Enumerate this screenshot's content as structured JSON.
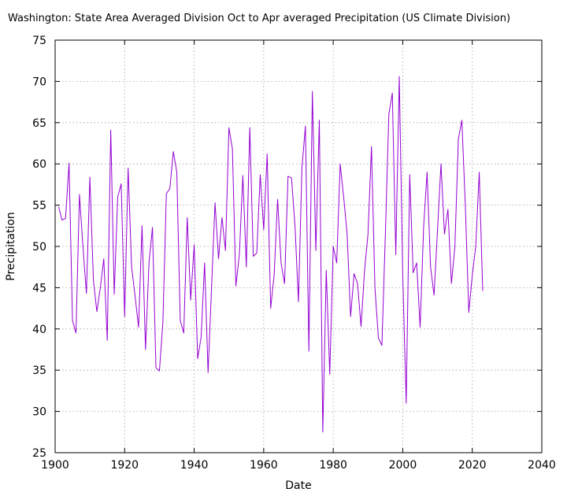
{
  "chart_data": {
    "type": "line",
    "title": "Washington: State Area Averaged Division  Oct to Apr averaged Precipitation  (US Climate Division)",
    "xlabel": "Date",
    "ylabel": "Precipitation",
    "xlim": [
      1900,
      2040
    ],
    "ylim": [
      25,
      75
    ],
    "xticks": [
      1900,
      1920,
      1940,
      1960,
      1980,
      2000,
      2020,
      2040
    ],
    "yticks": [
      25,
      30,
      35,
      40,
      45,
      50,
      55,
      60,
      65,
      70,
      75
    ],
    "grid": true,
    "series": [
      {
        "name": "Oct to Apr averaged Precipitation",
        "color": "#9400d3",
        "x": [
          1901,
          1902,
          1903,
          1904,
          1905,
          1906,
          1907,
          1908,
          1909,
          1910,
          1911,
          1912,
          1913,
          1914,
          1915,
          1916,
          1917,
          1918,
          1919,
          1920,
          1921,
          1922,
          1923,
          1924,
          1925,
          1926,
          1927,
          1928,
          1929,
          1930,
          1931,
          1932,
          1933,
          1934,
          1935,
          1936,
          1937,
          1938,
          1939,
          1940,
          1941,
          1942,
          1943,
          1944,
          1945,
          1946,
          1947,
          1948,
          1949,
          1950,
          1951,
          1952,
          1953,
          1954,
          1955,
          1956,
          1957,
          1958,
          1959,
          1960,
          1961,
          1962,
          1963,
          1964,
          1965,
          1966,
          1967,
          1968,
          1969,
          1970,
          1971,
          1972,
          1973,
          1974,
          1975,
          1976,
          1977,
          1978,
          1979,
          1980,
          1981,
          1982,
          1983,
          1984,
          1985,
          1986,
          1987,
          1988,
          1989,
          1990,
          1991,
          1992,
          1993,
          1994,
          1995,
          1996,
          1997,
          1998,
          1999,
          2000,
          2001,
          2002,
          2003,
          2004,
          2005,
          2006,
          2007,
          2008,
          2009,
          2010,
          2011,
          2012,
          2013,
          2014,
          2015,
          2016,
          2017,
          2018,
          2019,
          2020,
          2021,
          2022,
          2023
        ],
        "values": [
          54.8,
          53.2,
          53.4,
          60.1,
          41.0,
          39.5,
          56.3,
          50.0,
          44.3,
          58.4,
          46.0,
          42.1,
          45.0,
          48.5,
          38.6,
          64.1,
          44.2,
          56.0,
          57.6,
          41.5,
          59.5,
          47.5,
          44.0,
          40.2,
          52.5,
          37.5,
          48.0,
          52.3,
          35.3,
          34.9,
          40.8,
          56.4,
          57.0,
          61.5,
          59.0,
          41.0,
          39.5,
          53.5,
          43.5,
          50.2,
          36.4,
          39.0,
          48.0,
          34.7,
          45.0,
          55.3,
          48.5,
          53.5,
          49.5,
          64.4,
          61.8,
          45.2,
          49.0,
          58.6,
          47.5,
          64.4,
          48.8,
          49.2,
          58.7,
          52.0,
          61.2,
          42.5,
          46.5,
          55.7,
          48.0,
          45.5,
          58.5,
          58.3,
          52.5,
          43.3,
          59.5,
          64.6,
          37.3,
          68.8,
          49.5,
          65.3,
          27.5,
          47.1,
          34.5,
          50.0,
          48.0,
          60.0,
          56.0,
          51.5,
          41.5,
          46.7,
          45.5,
          40.3,
          47.0,
          51.5,
          62.1,
          45.0,
          38.9,
          38.0,
          51.5,
          66.0,
          68.6,
          49.0,
          70.6,
          46.5,
          31.0,
          58.7,
          46.8,
          48.0,
          40.2,
          52.3,
          59.0,
          47.5,
          44.1,
          52.0,
          60.0,
          51.5,
          54.5,
          45.5,
          50.0,
          63.0,
          65.3,
          55.0,
          42.0,
          46.5,
          50.0,
          59.0,
          44.6
        ]
      }
    ]
  }
}
